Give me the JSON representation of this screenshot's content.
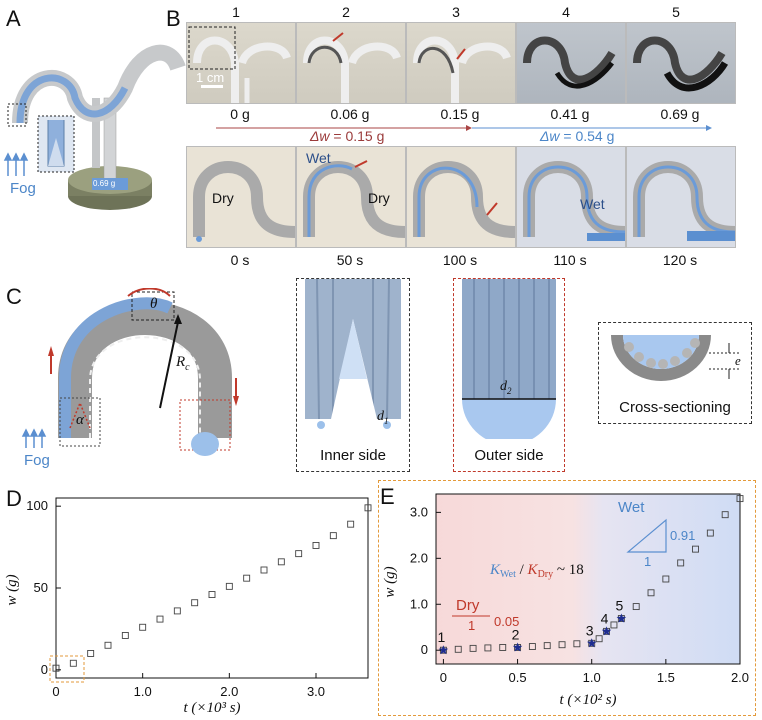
{
  "panels": {
    "A": {
      "letter": "A",
      "fog": "Fog",
      "weight": "0.69 g"
    },
    "B": {
      "letter": "B",
      "frames": [
        "1",
        "2",
        "3",
        "4",
        "5"
      ],
      "scale": "1 cm",
      "weights": [
        "0 g",
        "0.06 g",
        "0.15 g",
        "0.41 g",
        "0.69 g"
      ],
      "dw1_sym": "Δw",
      "dw1_val": " = 0.15 g",
      "dw2_sym": "Δw",
      "dw2_val": " = 0.54 g",
      "times": [
        "0 s",
        "50 s",
        "100 s",
        "110 s",
        "120 s"
      ],
      "dry": "Dry",
      "wet": "Wet"
    },
    "C": {
      "letter": "C",
      "theta": "θ",
      "alpha": "α",
      "rc": "R",
      "rc_sub": "c",
      "fog": "Fog",
      "inner": "Inner side",
      "outer": "Outer side",
      "d1": "d",
      "d1_sub": "1",
      "d2": "d",
      "d2_sub": "2",
      "e": "e",
      "cross": "Cross-sectioning"
    },
    "D": {
      "letter": "D"
    },
    "E": {
      "letter": "E",
      "wet": "Wet",
      "wet_slope": "0.91",
      "wet_run": "1",
      "dry": "Dry",
      "dry_slope": "0.05",
      "dry_run": "1",
      "ratio_k": "K",
      "ratio_wet_sub": "Wet",
      "ratio_slash": " / ",
      "ratio_dry_sub": "Dry",
      "ratio_val": " ~ 18",
      "points": [
        "1",
        "2",
        "3",
        "4",
        "5"
      ]
    }
  },
  "chart_data": [
    {
      "type": "scatter",
      "panel": "D",
      "xlabel": "t (×10³ s)",
      "ylabel": "w (g)",
      "xlim": [
        0,
        3.6
      ],
      "ylim": [
        -5,
        105
      ],
      "xticks": [
        "0",
        "1.0",
        "2.0",
        "3.0"
      ],
      "yticks": [
        "0",
        "50",
        "100"
      ],
      "x": [
        0,
        0.2,
        0.4,
        0.6,
        0.8,
        1.0,
        1.2,
        1.4,
        1.6,
        1.8,
        2.0,
        2.2,
        2.4,
        2.6,
        2.8,
        3.0,
        3.2,
        3.4,
        3.6
      ],
      "y": [
        1,
        4,
        10,
        15,
        21,
        26,
        31,
        36,
        41,
        46,
        51,
        56,
        61,
        66,
        71,
        76,
        82,
        89,
        99
      ]
    },
    {
      "type": "scatter",
      "panel": "E",
      "xlabel": "t (×10² s)",
      "ylabel": "w (g)",
      "xlim": [
        -0.05,
        2.0
      ],
      "ylim": [
        -0.3,
        3.4
      ],
      "xticks": [
        "0",
        "0.5",
        "1.0",
        "1.5",
        "2.0"
      ],
      "yticks": [
        "0",
        "1.0",
        "2.0",
        "3.0"
      ],
      "x": [
        0,
        0.1,
        0.2,
        0.3,
        0.4,
        0.5,
        0.6,
        0.7,
        0.8,
        0.9,
        1.0,
        1.05,
        1.1,
        1.15,
        1.2,
        1.3,
        1.4,
        1.5,
        1.6,
        1.7,
        1.8,
        1.9,
        2.0
      ],
      "y": [
        0,
        0.02,
        0.04,
        0.05,
        0.06,
        0.06,
        0.08,
        0.1,
        0.12,
        0.14,
        0.15,
        0.25,
        0.41,
        0.55,
        0.69,
        0.95,
        1.25,
        1.55,
        1.9,
        2.2,
        2.55,
        2.95,
        3.3
      ],
      "stars_x": [
        0,
        0.5,
        1.0,
        1.1,
        1.2
      ],
      "stars_y": [
        0,
        0.06,
        0.15,
        0.41,
        0.69
      ]
    }
  ]
}
